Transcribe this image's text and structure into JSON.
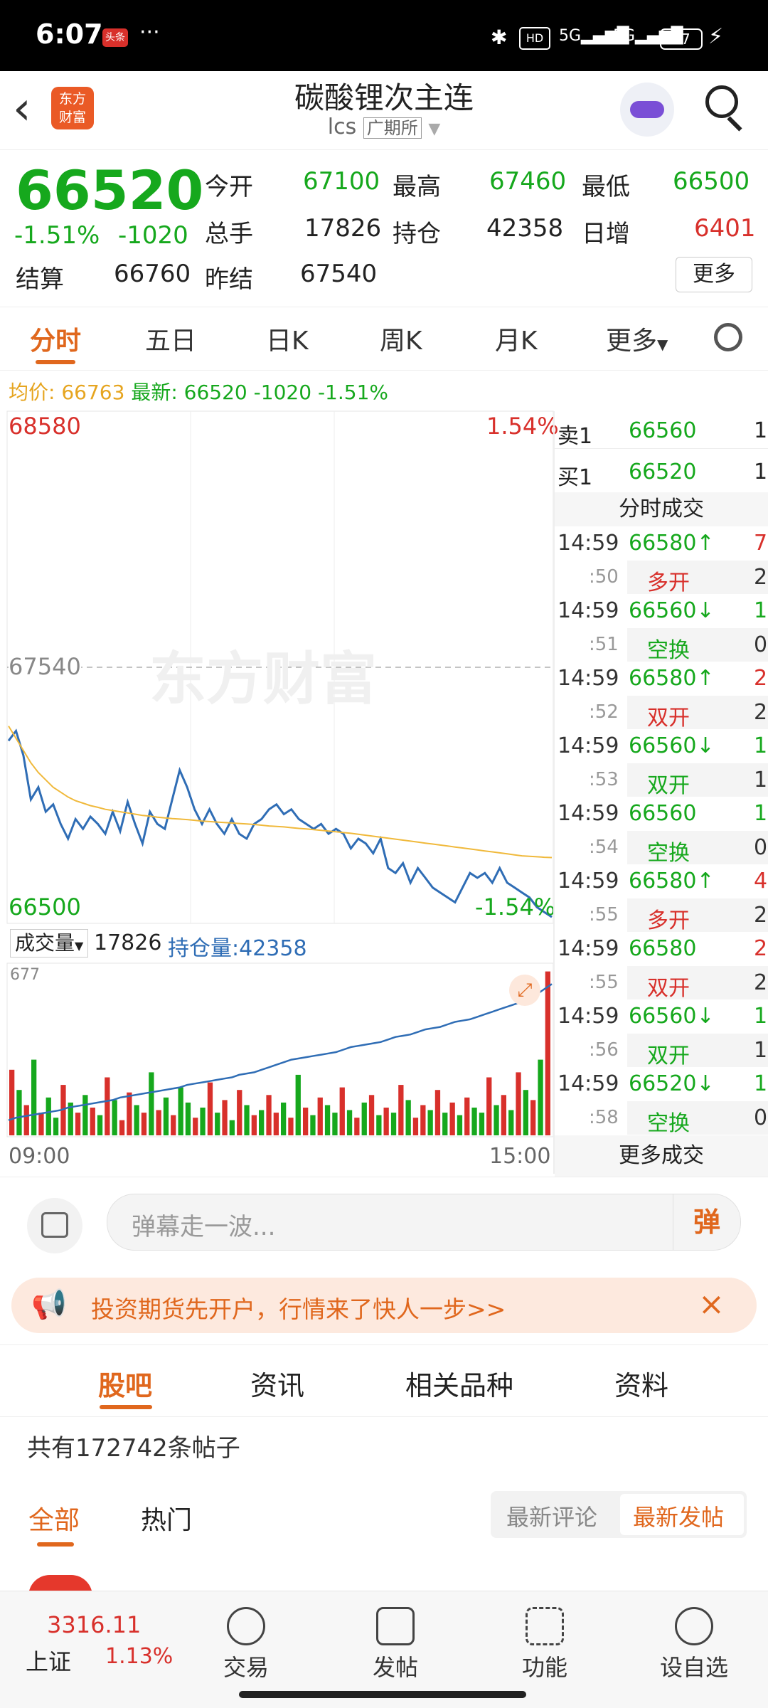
{
  "status_bar": {
    "time": "6:07",
    "app_badge": "头条",
    "more": "···",
    "battery": "27"
  },
  "header": {
    "title": "碳酸锂次主连",
    "code": "lcs",
    "exchange": "广期所",
    "logo_text_1": "东方",
    "logo_text_2": "财富"
  },
  "quote": {
    "price": "66520",
    "change_pct": "-1.51%",
    "change": "-1020",
    "fields": [
      {
        "label": "今开",
        "value": "67100",
        "color": "#16a81d"
      },
      {
        "label": "最高",
        "value": "67460",
        "color": "#16a81d"
      },
      {
        "label": "最低",
        "value": "66500",
        "color": "#16a81d"
      },
      {
        "label": "总手",
        "value": "17826",
        "color": "#222222"
      },
      {
        "label": "持仓",
        "value": "42358",
        "color": "#222222"
      },
      {
        "label": "日增",
        "value": "6401",
        "color": "#d8302b"
      },
      {
        "label": "结算",
        "value": "66760",
        "color": "#222222"
      },
      {
        "label": "昨结",
        "value": "67540",
        "color": "#222222"
      }
    ],
    "more_button": "更多"
  },
  "tabs": [
    "分时",
    "五日",
    "日K",
    "周K",
    "月K",
    "更多"
  ],
  "avg_line": {
    "avg_label": "均价:",
    "avg_value": "66763",
    "latest_label": "最新:",
    "latest_value": "66520",
    "change": "-1020",
    "change_pct": "-1.51%"
  },
  "chart_labels": {
    "high": "68580",
    "high_pct": "1.54%",
    "prev_settle": "67540",
    "low": "66500",
    "low_pct": "-1.54%",
    "watermark": "东方财富",
    "volume_label": "成交量",
    "volume_value": "17826",
    "oi_label": "持仓量:42358",
    "volume_axis_max": "677",
    "time_start": "09:00",
    "time_end": "15:00"
  },
  "order_book": [
    {
      "label": "卖1",
      "price": "66560",
      "qty": "1"
    },
    {
      "label": "买1",
      "price": "66520",
      "qty": "1"
    }
  ],
  "trades_title": "分时成交",
  "trades": [
    {
      "time": "14:59",
      "price": "66580",
      "dir": "↑",
      "qty": "7",
      "sub_time": ":50",
      "type": "多开",
      "type_qty": "2",
      "price_color": "#16a81d",
      "type_color": "#d8302b",
      "qty_color": "#d8302b"
    },
    {
      "time": "14:59",
      "price": "66560",
      "dir": "↓",
      "qty": "1",
      "sub_time": ":51",
      "type": "空换",
      "type_qty": "0",
      "price_color": "#16a81d",
      "type_color": "#16a81d",
      "qty_color": "#16a81d"
    },
    {
      "time": "14:59",
      "price": "66580",
      "dir": "↑",
      "qty": "2",
      "sub_time": ":52",
      "type": "双开",
      "type_qty": "2",
      "price_color": "#16a81d",
      "type_color": "#d8302b",
      "qty_color": "#d8302b"
    },
    {
      "time": "14:59",
      "price": "66560",
      "dir": "↓",
      "qty": "1",
      "sub_time": ":53",
      "type": "双开",
      "type_qty": "1",
      "price_color": "#16a81d",
      "type_color": "#16a81d",
      "qty_color": "#16a81d"
    },
    {
      "time": "14:59",
      "price": "66560",
      "dir": "",
      "qty": "1",
      "sub_time": ":54",
      "type": "空换",
      "type_qty": "0",
      "price_color": "#16a81d",
      "type_color": "#16a81d",
      "qty_color": "#16a81d"
    },
    {
      "time": "14:59",
      "price": "66580",
      "dir": "↑",
      "qty": "4",
      "sub_time": ":55",
      "type": "多开",
      "type_qty": "2",
      "price_color": "#16a81d",
      "type_color": "#d8302b",
      "qty_color": "#d8302b"
    },
    {
      "time": "14:59",
      "price": "66580",
      "dir": "",
      "qty": "2",
      "sub_time": ":55",
      "type": "双开",
      "type_qty": "2",
      "price_color": "#16a81d",
      "type_color": "#d8302b",
      "qty_color": "#d8302b"
    },
    {
      "time": "14:59",
      "price": "66560",
      "dir": "↓",
      "qty": "1",
      "sub_time": ":56",
      "type": "双开",
      "type_qty": "1",
      "price_color": "#16a81d",
      "type_color": "#16a81d",
      "qty_color": "#16a81d"
    },
    {
      "time": "14:59",
      "price": "66520",
      "dir": "↓",
      "qty": "1",
      "sub_time": ":58",
      "type": "空换",
      "type_qty": "0",
      "price_color": "#16a81d",
      "type_color": "#16a81d",
      "qty_color": "#16a81d"
    }
  ],
  "more_trades": "更多成交",
  "danmu": {
    "placeholder": "弹幕走一波...",
    "send": "弹"
  },
  "banner": {
    "text": "投资期货先开户，行情来了快人一步>>"
  },
  "sections": [
    "股吧",
    "资讯",
    "相关品种",
    "资料"
  ],
  "posts_count": "共有172742条帖子",
  "filters": {
    "all": "全部",
    "hot": "热门",
    "latest_comment": "最新评论",
    "latest_post": "最新发帖"
  },
  "bottom_nav": {
    "index_value": "3316.11",
    "index_name": "上证",
    "index_pct": "1.13%",
    "items": [
      "交易",
      "发帖",
      "功能",
      "设自选"
    ]
  },
  "chart_data": {
    "type": "line",
    "x_range": [
      "09:00",
      "15:00"
    ],
    "ylim": [
      66500,
      68580
    ],
    "prev_settle": 67540,
    "series": [
      {
        "name": "最新",
        "color": "#2f6db5",
        "values": [
          67240,
          67280,
          67180,
          67000,
          67050,
          66950,
          66980,
          66900,
          66840,
          66920,
          66880,
          66930,
          66900,
          66860,
          66950,
          66870,
          66990,
          66900,
          66820,
          66950,
          66900,
          66880,
          67000,
          67120,
          67050,
          66960,
          66900,
          66960,
          66900,
          66860,
          66920,
          66860,
          66840,
          66900,
          66920,
          66960,
          66980,
          66940,
          66960,
          66920,
          66900,
          66880,
          66900,
          66860,
          66880,
          66860,
          66800,
          66840,
          66820,
          66780,
          66840,
          66720,
          66700,
          66740,
          66660,
          66720,
          66680,
          66640,
          66620,
          66600,
          66580,
          66640,
          66700,
          66680,
          66700,
          66660,
          66720,
          66660,
          66640,
          66620,
          66600,
          66560,
          66540,
          66520
        ]
      },
      {
        "name": "均价",
        "color": "#f0b93b",
        "values": [
          67300,
          67250,
          67200,
          67150,
          67110,
          67080,
          67050,
          67030,
          67010,
          66995,
          66985,
          66975,
          66968,
          66960,
          66955,
          66950,
          66945,
          66940,
          66935,
          66932,
          66928,
          66925,
          66922,
          66920,
          66918,
          66915,
          66912,
          66910,
          66908,
          66906,
          66904,
          66902,
          66900,
          66898,
          66895,
          66892,
          66890,
          66888,
          66885,
          66882,
          66880,
          66877,
          66874,
          66871,
          66868,
          66865,
          66862,
          66858,
          66854,
          66850,
          66846,
          66842,
          66838,
          66834,
          66830,
          66826,
          66822,
          66818,
          66814,
          66810,
          66806,
          66802,
          66798,
          66794,
          66790,
          66786,
          66782,
          66778,
          66774,
          66770,
          66768,
          66766,
          66764,
          66763
        ]
      }
    ],
    "volume": {
      "ylim": [
        0,
        677
      ],
      "bars": [
        260,
        180,
        120,
        300,
        90,
        150,
        70,
        200,
        130,
        90,
        160,
        110,
        80,
        230,
        140,
        60,
        170,
        120,
        90,
        250,
        100,
        150,
        80,
        190,
        130,
        70,
        110,
        210,
        90,
        140,
        60,
        180,
        120,
        80,
        100,
        160,
        90,
        130,
        70,
        240,
        110,
        80,
        150,
        120,
        90,
        190,
        100,
        70,
        130,
        160,
        80,
        110,
        90,
        200,
        140,
        70,
        120,
        100,
        180,
        90,
        130,
        80,
        150,
        110,
        90,
        230,
        120,
        160,
        100,
        250,
        180,
        140,
        300,
        650
      ],
      "bar_colors": [
        "r",
        "g",
        "r",
        "g",
        "r",
        "g",
        "g",
        "r",
        "g",
        "r",
        "g",
        "r",
        "g",
        "r",
        "g",
        "r",
        "r",
        "g",
        "r",
        "g",
        "r",
        "g",
        "r",
        "g",
        "g",
        "r",
        "g",
        "r",
        "g",
        "r",
        "g",
        "r",
        "g",
        "r",
        "g",
        "r",
        "r",
        "g",
        "r",
        "g",
        "r",
        "g",
        "r",
        "g",
        "g",
        "r",
        "g",
        "r",
        "g",
        "r",
        "g",
        "r",
        "g",
        "r",
        "g",
        "r",
        "r",
        "g",
        "r",
        "g",
        "r",
        "g",
        "r",
        "g",
        "g",
        "r",
        "g",
        "r",
        "g",
        "r",
        "g",
        "r",
        "g",
        "r"
      ],
      "open_interest": [
        60,
        70,
        75,
        80,
        85,
        90,
        95,
        100,
        110,
        115,
        120,
        125,
        130,
        135,
        140,
        150,
        155,
        160,
        165,
        170,
        175,
        180,
        185,
        190,
        200,
        205,
        210,
        215,
        220,
        225,
        230,
        240,
        245,
        250,
        260,
        270,
        280,
        290,
        300,
        305,
        310,
        315,
        320,
        325,
        330,
        340,
        350,
        355,
        360,
        365,
        370,
        380,
        390,
        395,
        400,
        410,
        420,
        425,
        430,
        440,
        450,
        455,
        460,
        470,
        480,
        490,
        500,
        510,
        520,
        530,
        540,
        560,
        580,
        600
      ]
    }
  }
}
